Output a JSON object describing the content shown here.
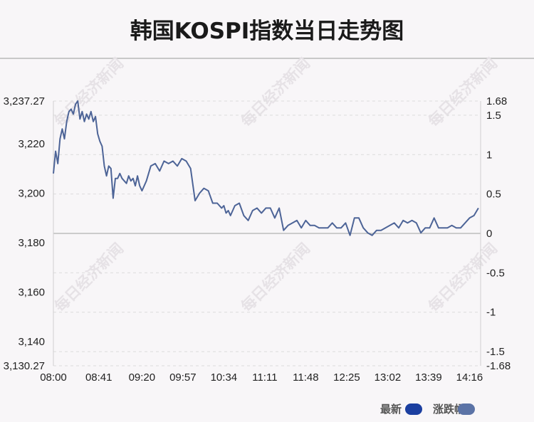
{
  "chart_data": {
    "type": "line",
    "title": "韩国KOSPI指数当日走势图",
    "x_ticks": [
      "08:00",
      "08:41",
      "09:20",
      "09:57",
      "10:34",
      "11:11",
      "11:48",
      "12:25",
      "13:02",
      "13:39",
      "14:16"
    ],
    "y_left_ticks": [
      "3,237.27",
      "3,220",
      "3,200",
      "3,180",
      "3,160",
      "3,140",
      "3,130.27"
    ],
    "y_left_range": [
      3130.27,
      3237.27
    ],
    "y_right_ticks": [
      "1.68",
      "1.5",
      "1",
      "0.5",
      "0",
      "-0.5",
      "-1",
      "-1.5",
      "-1.68"
    ],
    "y_right_range": [
      -1.68,
      1.68
    ],
    "baseline_value": 3183.76,
    "grid": "horizontal dashed",
    "legend_position": "bottom-right",
    "series": [
      {
        "name": "最新",
        "color": "#1b3fa0",
        "x": [
          "08:00",
          "08:02",
          "08:04",
          "08:06",
          "08:08",
          "08:10",
          "08:12",
          "08:14",
          "08:16",
          "08:18",
          "08:20",
          "08:22",
          "08:24",
          "08:26",
          "08:28",
          "08:30",
          "08:32",
          "08:34",
          "08:36",
          "08:38",
          "08:40",
          "08:42",
          "08:44",
          "08:46",
          "08:48",
          "08:50",
          "08:52",
          "08:54",
          "08:56",
          "08:58",
          "09:00",
          "09:02",
          "09:04",
          "09:06",
          "09:08",
          "09:10",
          "09:12",
          "09:14",
          "09:16",
          "09:18",
          "09:20",
          "09:24",
          "09:28",
          "09:32",
          "09:36",
          "09:40",
          "09:44",
          "09:48",
          "09:52",
          "09:56",
          "10:00",
          "10:04",
          "10:08",
          "10:12",
          "10:16",
          "10:20",
          "10:24",
          "10:28",
          "10:32",
          "10:34",
          "10:36",
          "10:38",
          "10:40",
          "10:44",
          "10:48",
          "10:52",
          "10:56",
          "11:00",
          "11:04",
          "11:08",
          "11:12",
          "11:16",
          "11:20",
          "11:24",
          "11:28",
          "11:32",
          "11:36",
          "11:40",
          "11:44",
          "11:48",
          "11:52",
          "11:56",
          "12:00",
          "12:04",
          "12:08",
          "12:12",
          "12:16",
          "12:20",
          "12:24",
          "12:28",
          "12:32",
          "12:36",
          "12:40",
          "12:44",
          "12:48",
          "12:52",
          "12:56",
          "13:00",
          "13:04",
          "13:08",
          "13:12",
          "13:16",
          "13:20",
          "13:24",
          "13:28",
          "13:32",
          "13:36",
          "13:40",
          "13:44",
          "13:48",
          "13:52",
          "13:56",
          "14:00",
          "14:04",
          "14:08",
          "14:12",
          "14:16",
          "14:20",
          "14:24"
        ],
        "values": [
          3208,
          3217,
          3212,
          3222,
          3226,
          3222,
          3229,
          3233,
          3234,
          3232,
          3236,
          3237.3,
          3230,
          3233,
          3229,
          3232,
          3230,
          3233,
          3229,
          3231,
          3224,
          3221,
          3219,
          3211,
          3207,
          3211,
          3210,
          3198,
          3206,
          3206,
          3208,
          3206,
          3205,
          3204,
          3207,
          3205,
          3206,
          3203,
          3207,
          3203,
          3201,
          3205,
          3211,
          3212,
          3209,
          3213,
          3212,
          3213,
          3211,
          3214,
          3213,
          3210,
          3197,
          3200,
          3202,
          3201,
          3196,
          3196,
          3194,
          3195,
          3192,
          3193,
          3191,
          3195,
          3196,
          3191,
          3189,
          3193,
          3194,
          3192,
          3194,
          3194,
          3190,
          3194,
          3185,
          3187,
          3188,
          3189,
          3186,
          3189,
          3187,
          3187,
          3186,
          3186,
          3186,
          3188,
          3186,
          3186,
          3188,
          3183,
          3190,
          3190,
          3186,
          3184,
          3183,
          3185,
          3185,
          3186,
          3187,
          3188,
          3186,
          3189,
          3188,
          3189,
          3188,
          3184,
          3186,
          3186,
          3190,
          3186,
          3186,
          3186,
          3187,
          3186,
          3186,
          3188,
          3190,
          3191,
          3194
        ]
      },
      {
        "name": "涨跌幅",
        "color": "#5b73a6"
      }
    ]
  },
  "watermark": "每日经济新闻"
}
